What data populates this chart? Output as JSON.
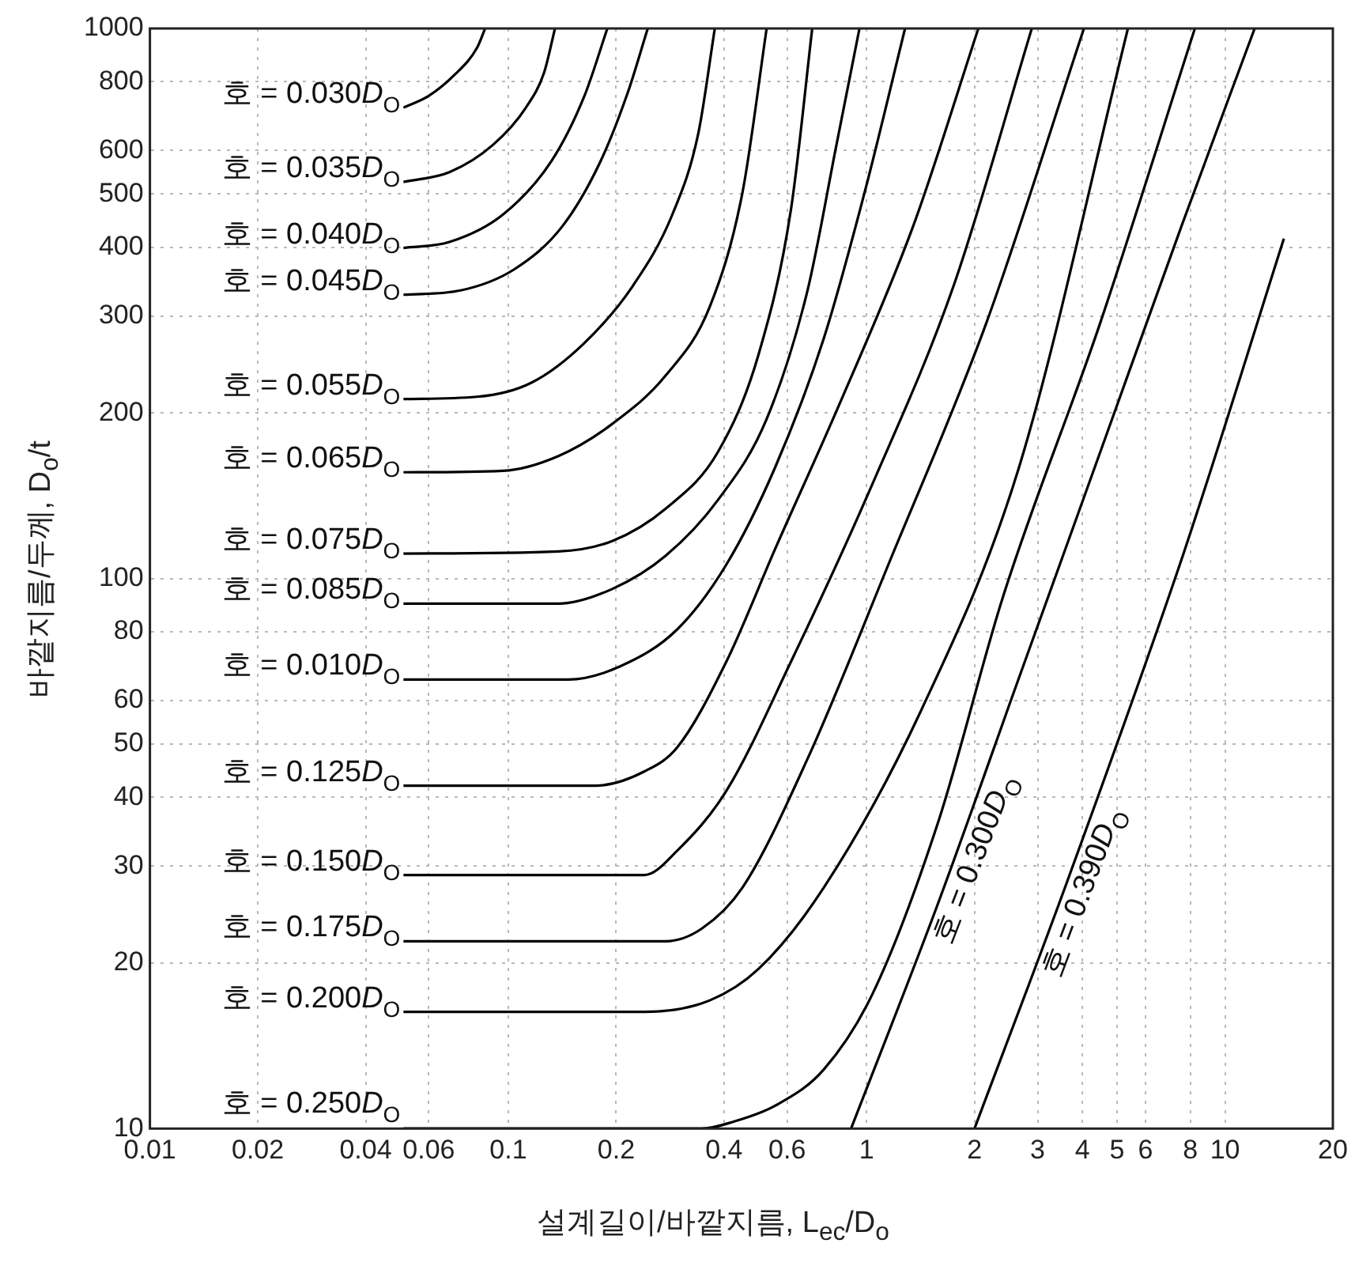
{
  "chart_data": {
    "type": "line",
    "xlabel": "설계길이/바깥지름, L$_{ec}$/D$_{o}$",
    "ylabel": "바깥지름/두께, D$_{o}$/t",
    "log": "xy",
    "xlim": [
      0.01,
      20
    ],
    "ylim": [
      10,
      1000
    ],
    "xticks": [
      0.01,
      0.02,
      0.04,
      0.06,
      0.1,
      0.2,
      0.4,
      0.6,
      1,
      2,
      3,
      4,
      5,
      6,
      8,
      10,
      20
    ],
    "yticks": [
      10,
      20,
      30,
      40,
      50,
      60,
      80,
      100,
      200,
      300,
      400,
      500,
      600,
      800,
      1000
    ],
    "grid": true,
    "legend": false,
    "marker": "none",
    "line_style": "solid",
    "series": [
      {
        "name": "호 = 0.030D$_{O}$",
        "color": "#000000",
        "x": [
          0.051,
          0.0598,
          0.0706,
          0.0818,
          0.0862
        ],
        "values": [
          718,
          753,
          822,
          922,
          1000
        ]
      },
      {
        "name": "호 = 0.035D$_{O}$",
        "color": "#000000",
        "x": [
          0.051,
          0.0685,
          0.0908,
          0.112,
          0.126,
          0.135
        ],
        "values": [
          526,
          548,
          615,
          718,
          833,
          1000
        ]
      },
      {
        "name": "호 = 0.040D$_{O}$",
        "color": "#000000",
        "x": [
          0.051,
          0.0685,
          0.0967,
          0.132,
          0.163,
          0.189
        ],
        "values": [
          399,
          409,
          459,
          574,
          753,
          1000
        ]
      },
      {
        "name": "호 = 0.045D$_{O}$",
        "color": "#000000",
        "x": [
          0.051,
          0.0736,
          0.104,
          0.142,
          0.181,
          0.216,
          0.245
        ],
        "values": [
          328,
          334,
          365,
          438,
          574,
          768,
          1000
        ]
      },
      {
        "name": "호 = 0.055D$_{O}$",
        "color": "#000000",
        "x": [
          0.051,
          0.0818,
          0.116,
          0.163,
          0.223,
          0.287,
          0.339,
          0.377
        ],
        "values": [
          212,
          214,
          227,
          268,
          341,
          459,
          644,
          1000
        ]
      },
      {
        "name": "호 = 0.065D$_{O}$",
        "color": "#000000",
        "x": [
          0.051,
          0.0967,
          0.138,
          0.195,
          0.275,
          0.365,
          0.45,
          0.526
        ],
        "values": [
          156,
          157,
          167,
          191,
          234,
          312,
          502,
          1000
        ]
      },
      {
        "name": "호 = 0.075D$_{O}$",
        "color": "#000000",
        "x": [
          0.051,
          0.138,
          0.195,
          0.275,
          0.385,
          0.499,
          0.615,
          0.705
        ],
        "values": [
          111,
          112,
          117,
          134,
          170,
          255,
          469,
          1000
        ]
      },
      {
        "name": "호 = 0.085D$_{O}$",
        "color": "#000000",
        "x": [
          0.051,
          0.138,
          0.195,
          0.275,
          0.385,
          0.526,
          0.684,
          0.824,
          0.955
        ],
        "values": [
          90,
          90,
          95.7,
          110,
          139,
          195,
          334,
          615,
          1000
        ]
      },
      {
        "name": "호 = 0.010D$_{O}$",
        "color": "#000000",
        "x": [
          0.051,
          0.147,
          0.205,
          0.296,
          0.406,
          0.555,
          0.759,
          0.986,
          1.28
        ],
        "values": [
          65.5,
          65.5,
          69.2,
          80.8,
          106,
          159,
          273,
          502,
          1000
        ]
      },
      {
        "name": "호 = 0.125D$_{O}$",
        "color": "#000000",
        "x": [
          0.051,
          0.175,
          0.24,
          0.296,
          0.406,
          0.555,
          0.841,
          1.35,
          2.05
        ],
        "values": [
          42,
          42,
          44.6,
          49.3,
          70.6,
          113,
          208,
          438,
          1000
        ]
      },
      {
        "name": "호 = 0.150D$_{O}$",
        "color": "#000000",
        "x": [
          0.051,
          0.24,
          0.296,
          0.406,
          0.615,
          1.04,
          1.75,
          2.89
        ],
        "values": [
          28.9,
          28.9,
          32,
          41.1,
          70.6,
          149,
          341,
          1000
        ]
      },
      {
        "name": "호 = 0.175D$_{O}$",
        "color": "#000000",
        "x": [
          0.051,
          0.275,
          0.347,
          0.45,
          0.684,
          1.15,
          2.16,
          4.04
        ],
        "values": [
          21.9,
          21.9,
          23.1,
          27.4,
          47,
          106,
          292,
          1000
        ]
      },
      {
        "name": "호 = 0.200D$_{O}$",
        "color": "#000000",
        "x": [
          0.051,
          0.24,
          0.365,
          0.499,
          0.759,
          1.42,
          2.66,
          5.36
        ],
        "values": [
          16.3,
          16.3,
          17.1,
          19.5,
          27.4,
          57.6,
          159,
          1000
        ]
      },
      {
        "name": "호 = 0.250D$_{O}$",
        "color": "#000000",
        "x": [
          0.051,
          0.347,
          0.427,
          0.555,
          0.759,
          1.04,
          1.58,
          2.4,
          4.49,
          8.24
        ],
        "values": [
          10,
          10,
          10.3,
          11,
          12.8,
          17.6,
          35.9,
          92.5,
          292,
          1000
        ]
      },
      {
        "name": "호 = 0.300D$_{O}$",
        "color": "#000000",
        "x": [
          0.905,
          1.58,
          2.66,
          4.49,
          7.57,
          12.1
        ],
        "values": [
          10,
          25.6,
          65.9,
          170,
          438,
          1000
        ]
      },
      {
        "name": "호 = 0.390D$_{O}$",
        "color": "#000000",
        "x": [
          2.0,
          3.64,
          7.73,
          14.6
        ],
        "values": [
          10,
          28.3,
          113,
          415
        ]
      }
    ]
  }
}
